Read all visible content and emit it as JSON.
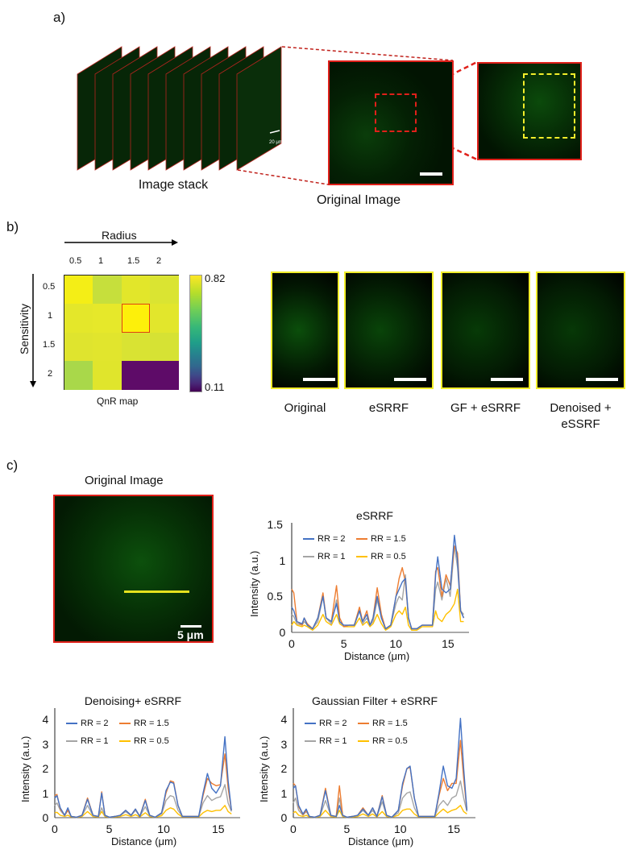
{
  "panel_a": {
    "label": "a)",
    "stack_caption": "Image stack",
    "stack_scale_bar": "20 μm",
    "original_caption": "Original Image",
    "stack_slice_count": 10
  },
  "panel_b": {
    "label": "b)",
    "x_axis_title": "Radius",
    "y_axis_title": "Sensitivity",
    "radius_ticks": [
      "0.5",
      "1",
      "1.5",
      "2"
    ],
    "sensitivity_ticks": [
      "0.5",
      "1",
      "1.5",
      "2"
    ],
    "map_caption": "QnR map",
    "colorbar_max": "0.82",
    "colorbar_min": "0.11",
    "selected_cell": {
      "row": 1,
      "col": 2
    },
    "heatmap_colors": [
      [
        "#f4ee16",
        "#c6df3c",
        "#e2e62a",
        "#dae432"
      ],
      [
        "#e4e72a",
        "#e6e82a",
        "#fdf00a",
        "#e2e62c"
      ],
      [
        "#dfe42e",
        "#e1e52d",
        "#d9e333",
        "#d6e234"
      ],
      [
        "#a9d84a",
        "#e0e52c",
        "#5e0b68",
        "#5e0b68"
      ]
    ],
    "panels": [
      {
        "caption": "Original"
      },
      {
        "caption": "eSRRF"
      },
      {
        "caption": "GF + eSRRF"
      },
      {
        "caption": "Denoised + eSSRF"
      }
    ]
  },
  "panel_c": {
    "label": "c)",
    "original_title": "Original Image",
    "scale_bar": "5 μm"
  },
  "colors": {
    "rr2": "#4472c4",
    "rr15": "#ed7d31",
    "rr1": "#a5a5a5",
    "rr05": "#ffc000",
    "frame_red": "#e0201a",
    "frame_yellow": "#f2ee2a"
  },
  "chart_data": [
    {
      "type": "line",
      "title": "eSRRF",
      "xlabel": "Distance (μm)",
      "ylabel": "Intensity (a.u.)",
      "xlim": [
        0,
        17
      ],
      "ylim": [
        0,
        1.5
      ],
      "xticks": [
        "0",
        "5",
        "10",
        "15"
      ],
      "yticks": [
        "0",
        "0.5",
        "1",
        "1.5"
      ],
      "legend": [
        "RR = 2",
        "RR = 1.5",
        "RR = 1",
        "RR = 0.5"
      ],
      "x": [
        0,
        0.2,
        0.5,
        1.0,
        1.2,
        1.5,
        2.0,
        2.5,
        3.0,
        3.3,
        3.8,
        4.3,
        4.6,
        5.0,
        5.5,
        6.0,
        6.5,
        6.8,
        7.2,
        7.5,
        7.8,
        8.2,
        8.6,
        9.0,
        9.5,
        10.0,
        10.3,
        10.6,
        10.9,
        11.2,
        11.5,
        12.0,
        12.5,
        13.0,
        13.5,
        13.8,
        14.0,
        14.4,
        14.8,
        15.2,
        15.6,
        15.9,
        16.2,
        16.5
      ],
      "series": [
        {
          "name": "RR = 2",
          "values": [
            0.35,
            0.3,
            0.15,
            0.12,
            0.2,
            0.1,
            0.05,
            0.2,
            0.5,
            0.2,
            0.15,
            0.4,
            0.15,
            0.1,
            0.1,
            0.1,
            0.3,
            0.15,
            0.25,
            0.1,
            0.2,
            0.5,
            0.2,
            0.05,
            0.1,
            0.5,
            0.6,
            0.7,
            0.75,
            0.2,
            0.05,
            0.05,
            0.1,
            0.1,
            0.1,
            0.8,
            1.05,
            0.6,
            0.55,
            0.6,
            1.35,
            1.0,
            0.3,
            0.2
          ]
        },
        {
          "name": "RR = 1.5",
          "values": [
            0.6,
            0.55,
            0.15,
            0.1,
            0.2,
            0.12,
            0.05,
            0.2,
            0.55,
            0.2,
            0.15,
            0.65,
            0.2,
            0.08,
            0.1,
            0.1,
            0.35,
            0.15,
            0.3,
            0.1,
            0.2,
            0.62,
            0.25,
            0.05,
            0.1,
            0.5,
            0.75,
            0.9,
            0.7,
            0.2,
            0.05,
            0.05,
            0.1,
            0.1,
            0.1,
            0.85,
            0.9,
            0.5,
            0.8,
            0.65,
            1.2,
            1.1,
            0.3,
            0.2
          ]
        },
        {
          "name": "RR = 1",
          "values": [
            0.25,
            0.22,
            0.12,
            0.1,
            0.15,
            0.1,
            0.05,
            0.15,
            0.5,
            0.2,
            0.12,
            0.45,
            0.15,
            0.08,
            0.1,
            0.1,
            0.3,
            0.12,
            0.2,
            0.1,
            0.15,
            0.45,
            0.2,
            0.05,
            0.1,
            0.4,
            0.5,
            0.45,
            0.8,
            0.2,
            0.05,
            0.05,
            0.1,
            0.1,
            0.1,
            0.6,
            0.7,
            0.45,
            0.75,
            0.5,
            1.2,
            0.9,
            0.3,
            0.25
          ]
        },
        {
          "name": "RR = 0.5",
          "values": [
            0.1,
            0.15,
            0.1,
            0.08,
            0.1,
            0.08,
            0.03,
            0.1,
            0.25,
            0.15,
            0.1,
            0.25,
            0.12,
            0.08,
            0.08,
            0.08,
            0.2,
            0.1,
            0.15,
            0.08,
            0.12,
            0.25,
            0.12,
            0.03,
            0.08,
            0.25,
            0.3,
            0.25,
            0.35,
            0.1,
            0.03,
            0.03,
            0.08,
            0.08,
            0.08,
            0.3,
            0.2,
            0.15,
            0.25,
            0.3,
            0.4,
            0.6,
            0.15,
            0.15
          ]
        }
      ]
    },
    {
      "type": "line",
      "title": "Denoising+ eSRRF",
      "xlabel": "Distance (μm)",
      "ylabel": "Intensity (a.u.)",
      "xlim": [
        0,
        17
      ],
      "ylim": [
        0,
        4.4
      ],
      "xticks": [
        "0",
        "5",
        "10",
        "15"
      ],
      "yticks": [
        "0",
        "1",
        "2",
        "3",
        "4"
      ],
      "legend": [
        "RR = 2",
        "RR = 1.5",
        "RR = 1",
        "RR = 0.5"
      ],
      "x": [
        0,
        0.2,
        0.5,
        0.9,
        1.2,
        1.5,
        2.0,
        2.5,
        3.0,
        3.5,
        4.0,
        4.3,
        4.6,
        5.0,
        5.5,
        6.0,
        6.5,
        7.0,
        7.4,
        7.8,
        8.3,
        8.7,
        9.2,
        9.8,
        10.2,
        10.6,
        10.9,
        11.3,
        11.7,
        12.2,
        12.7,
        13.2,
        13.6,
        14.0,
        14.4,
        14.8,
        15.2,
        15.6,
        15.9,
        16.2
      ],
      "series": [
        {
          "name": "RR = 2",
          "values": [
            0.8,
            0.9,
            0.4,
            0.1,
            0.4,
            0.05,
            0.02,
            0.1,
            0.75,
            0.1,
            0.05,
            1.0,
            0.1,
            0.02,
            0.05,
            0.1,
            0.3,
            0.1,
            0.35,
            0.05,
            0.7,
            0.1,
            0.02,
            0.2,
            1.1,
            1.45,
            1.4,
            0.5,
            0.05,
            0.05,
            0.05,
            0.05,
            1.0,
            1.8,
            1.2,
            1.0,
            1.3,
            3.3,
            1.5,
            0.3
          ]
        },
        {
          "name": "RR = 1.5",
          "values": [
            0.9,
            0.95,
            0.35,
            0.1,
            0.3,
            0.05,
            0.02,
            0.1,
            0.8,
            0.1,
            0.05,
            1.05,
            0.1,
            0.02,
            0.05,
            0.1,
            0.3,
            0.1,
            0.35,
            0.05,
            0.75,
            0.1,
            0.02,
            0.2,
            1.0,
            1.5,
            1.45,
            0.5,
            0.05,
            0.05,
            0.05,
            0.05,
            0.9,
            1.6,
            1.4,
            1.3,
            1.35,
            2.6,
            1.2,
            0.3
          ]
        },
        {
          "name": "RR = 1",
          "values": [
            0.5,
            0.6,
            0.3,
            0.08,
            0.3,
            0.05,
            0.02,
            0.08,
            0.5,
            0.08,
            0.05,
            0.4,
            0.08,
            0.02,
            0.05,
            0.08,
            0.25,
            0.08,
            0.3,
            0.05,
            0.45,
            0.08,
            0.02,
            0.15,
            0.7,
            0.9,
            0.85,
            0.3,
            0.05,
            0.05,
            0.05,
            0.05,
            0.6,
            0.9,
            0.7,
            0.8,
            0.85,
            1.35,
            0.6,
            0.25
          ]
        },
        {
          "name": "RR = 0.5",
          "values": [
            0.2,
            0.22,
            0.1,
            0.05,
            0.1,
            0.03,
            0.02,
            0.05,
            0.25,
            0.05,
            0.03,
            0.25,
            0.05,
            0.02,
            0.03,
            0.05,
            0.12,
            0.05,
            0.12,
            0.03,
            0.2,
            0.05,
            0.02,
            0.08,
            0.3,
            0.4,
            0.35,
            0.15,
            0.03,
            0.03,
            0.03,
            0.03,
            0.2,
            0.3,
            0.25,
            0.3,
            0.3,
            0.5,
            0.25,
            0.15
          ]
        }
      ]
    },
    {
      "type": "line",
      "title": "Gaussian Filter + eSRRF",
      "xlabel": "Distance (μm)",
      "ylabel": "Intensity (a.u.)",
      "xlim": [
        0,
        17
      ],
      "ylim": [
        0,
        4.4
      ],
      "xticks": [
        "0",
        "5",
        "10",
        "15"
      ],
      "yticks": [
        "0",
        "1",
        "2",
        "3",
        "4"
      ],
      "legend": [
        "RR = 2",
        "RR = 1.5",
        "RR = 1",
        "RR = 0.5"
      ],
      "x": [
        0,
        0.2,
        0.5,
        0.9,
        1.2,
        1.5,
        2.0,
        2.5,
        3.0,
        3.5,
        4.0,
        4.3,
        4.6,
        5.0,
        5.5,
        6.0,
        6.5,
        7.0,
        7.4,
        7.8,
        8.3,
        8.7,
        9.2,
        9.8,
        10.2,
        10.6,
        10.9,
        11.3,
        11.7,
        12.2,
        12.7,
        13.2,
        13.6,
        14.0,
        14.4,
        14.8,
        15.2,
        15.6,
        15.9,
        16.2
      ],
      "series": [
        {
          "name": "RR = 2",
          "values": [
            1.2,
            1.3,
            0.5,
            0.15,
            0.35,
            0.05,
            0.02,
            0.1,
            1.1,
            0.1,
            0.05,
            0.5,
            0.1,
            0.02,
            0.05,
            0.1,
            0.35,
            0.1,
            0.4,
            0.05,
            0.85,
            0.1,
            0.02,
            0.3,
            1.4,
            2.0,
            2.1,
            0.8,
            0.05,
            0.05,
            0.05,
            0.05,
            1.0,
            2.1,
            1.3,
            1.2,
            1.6,
            4.05,
            2.0,
            0.3
          ]
        },
        {
          "name": "RR = 1.5",
          "values": [
            1.4,
            1.3,
            0.45,
            0.12,
            0.3,
            0.05,
            0.02,
            0.1,
            1.2,
            0.1,
            0.05,
            1.3,
            0.1,
            0.02,
            0.05,
            0.1,
            0.4,
            0.1,
            0.4,
            0.05,
            0.9,
            0.1,
            0.02,
            0.3,
            1.3,
            2.0,
            2.05,
            0.8,
            0.05,
            0.05,
            0.05,
            0.05,
            0.9,
            1.6,
            1.1,
            1.4,
            1.4,
            3.15,
            1.6,
            0.3
          ]
        },
        {
          "name": "RR = 1",
          "values": [
            0.6,
            0.8,
            0.3,
            0.1,
            0.25,
            0.05,
            0.02,
            0.08,
            0.7,
            0.08,
            0.05,
            0.8,
            0.08,
            0.02,
            0.05,
            0.08,
            0.3,
            0.08,
            0.3,
            0.05,
            0.65,
            0.08,
            0.02,
            0.2,
            0.8,
            1.0,
            1.05,
            0.4,
            0.05,
            0.05,
            0.05,
            0.05,
            0.5,
            0.7,
            0.5,
            0.8,
            0.9,
            1.5,
            0.8,
            0.25
          ]
        },
        {
          "name": "RR = 0.5",
          "values": [
            0.2,
            0.25,
            0.1,
            0.05,
            0.1,
            0.03,
            0.02,
            0.05,
            0.3,
            0.05,
            0.03,
            0.3,
            0.05,
            0.02,
            0.03,
            0.05,
            0.15,
            0.05,
            0.15,
            0.03,
            0.25,
            0.05,
            0.02,
            0.1,
            0.3,
            0.35,
            0.35,
            0.15,
            0.03,
            0.03,
            0.03,
            0.03,
            0.2,
            0.35,
            0.2,
            0.3,
            0.35,
            0.5,
            0.25,
            0.15
          ]
        }
      ]
    }
  ]
}
